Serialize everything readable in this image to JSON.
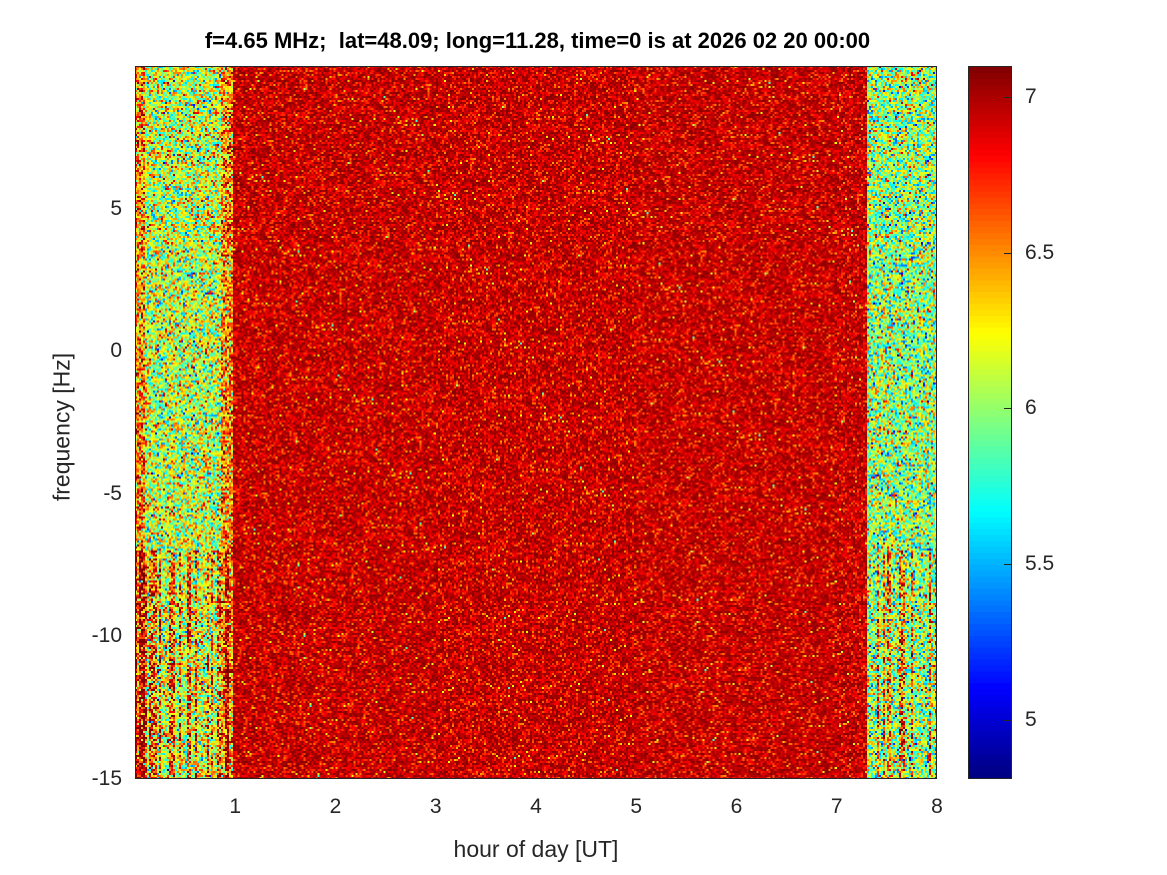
{
  "chart_data": {
    "type": "heatmap",
    "title": "f=4.65 MHz;  lat=48.09; long=11.28, time=0 is at 2026 02 20 00:00",
    "xlabel": "hour of day [UT]",
    "ylabel": "frequency [Hz]",
    "xlim": [
      0,
      8
    ],
    "ylim": [
      -15,
      10
    ],
    "xticks": [
      "1",
      "2",
      "3",
      "4",
      "5",
      "6",
      "7",
      "8"
    ],
    "yticks": [
      "5",
      "0",
      "-5",
      "-10",
      "-15"
    ],
    "colormap": "jet",
    "clim": [
      4.81,
      7.1
    ],
    "colorbar_ticks": [
      "5",
      "5.5",
      "6",
      "6.5",
      "7"
    ],
    "mean_level_by_time": [
      {
        "x_from": 0,
        "x_to": 0.98,
        "mean": 6.1
      },
      {
        "x_from": 0.98,
        "x_to": 7.3,
        "mean": 6.95
      },
      {
        "x_from": 7.3,
        "x_to": 8,
        "mean": 6.0
      }
    ]
  }
}
